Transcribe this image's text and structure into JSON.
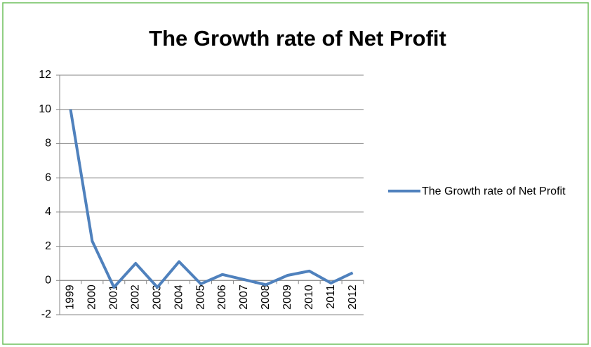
{
  "chart_data": {
    "type": "line",
    "title": "The Growth rate of Net Profit",
    "categories": [
      "1999",
      "2000",
      "2001",
      "2002",
      "2003",
      "2004",
      "2005",
      "2006",
      "2007",
      "2008",
      "2009",
      "2010",
      "2011",
      "2012"
    ],
    "series": [
      {
        "name": "The Growth rate of Net Profit",
        "color": "#4f81bd",
        "values": [
          10,
          2.3,
          -0.4,
          1.0,
          -0.4,
          1.1,
          -0.2,
          0.35,
          0.05,
          -0.25,
          0.3,
          0.55,
          -0.15,
          0.45
        ]
      }
    ],
    "ylim": [
      -2,
      12
    ],
    "yticks": [
      -2,
      0,
      2,
      4,
      6,
      8,
      10,
      12
    ],
    "grid": true,
    "legend": "right"
  }
}
